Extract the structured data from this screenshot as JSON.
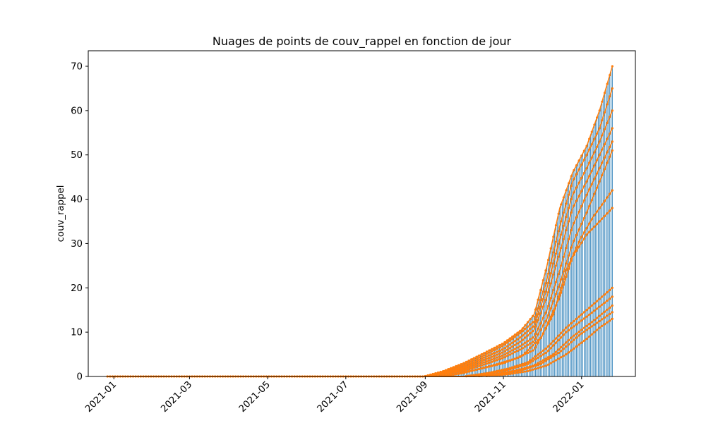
{
  "chart_data": {
    "type": "scatter",
    "title": "Nuages de points de couv_rappel en fonction de jour",
    "xlabel": "",
    "ylabel": "couv_rappel",
    "xlim": [
      "2020-12-12",
      "2022-02-12"
    ],
    "ylim": [
      0,
      73.5
    ],
    "x_ticks": [
      "2021-01",
      "2021-03",
      "2021-05",
      "2021-07",
      "2021-09",
      "2021-11",
      "2022-01"
    ],
    "y_ticks": [
      0,
      10,
      20,
      30,
      40,
      50,
      60,
      70
    ],
    "grid": false,
    "colors": {
      "bars": "#1f77b4",
      "points": "#ff7f0e"
    },
    "x_start": "2020-12-27",
    "x_end": "2022-01-25",
    "series": [
      {
        "points": [
          [
            "2021-08-31",
            0
          ],
          [
            "2021-09-15",
            1.2
          ],
          [
            "2021-10-01",
            3.0
          ],
          [
            "2021-10-15",
            5.0
          ],
          [
            "2021-11-01",
            7.5
          ],
          [
            "2021-11-15",
            10.5
          ],
          [
            "2021-11-25",
            14
          ],
          [
            "2021-12-05",
            25
          ],
          [
            "2021-12-15",
            38
          ],
          [
            "2021-12-25",
            46
          ],
          [
            "2022-01-05",
            52
          ],
          [
            "2022-01-15",
            60
          ],
          [
            "2022-01-25",
            70
          ]
        ]
      },
      {
        "points": [
          [
            "2021-08-31",
            0
          ],
          [
            "2021-09-15",
            1.0
          ],
          [
            "2021-10-01",
            2.6
          ],
          [
            "2021-10-15",
            4.5
          ],
          [
            "2021-11-01",
            7.0
          ],
          [
            "2021-11-15",
            10.0
          ],
          [
            "2021-11-25",
            12.5
          ],
          [
            "2021-12-05",
            22
          ],
          [
            "2021-12-15",
            34
          ],
          [
            "2021-12-25",
            44
          ],
          [
            "2022-01-05",
            50
          ],
          [
            "2022-01-15",
            56
          ],
          [
            "2022-01-25",
            65
          ]
        ]
      },
      {
        "points": [
          [
            "2021-08-31",
            0
          ],
          [
            "2021-09-15",
            0.8
          ],
          [
            "2021-10-01",
            2.2
          ],
          [
            "2021-10-15",
            4.0
          ],
          [
            "2021-11-01",
            6.2
          ],
          [
            "2021-11-15",
            9.0
          ],
          [
            "2021-11-25",
            11.5
          ],
          [
            "2021-12-05",
            20
          ],
          [
            "2021-12-15",
            31
          ],
          [
            "2021-12-25",
            41
          ],
          [
            "2022-01-05",
            47
          ],
          [
            "2022-01-15",
            53
          ],
          [
            "2022-01-25",
            60
          ]
        ]
      },
      {
        "points": [
          [
            "2021-08-31",
            0
          ],
          [
            "2021-09-15",
            0.7
          ],
          [
            "2021-10-01",
            1.9
          ],
          [
            "2021-10-15",
            3.5
          ],
          [
            "2021-11-01",
            5.5
          ],
          [
            "2021-11-15",
            8.0
          ],
          [
            "2021-11-25",
            10.5
          ],
          [
            "2021-12-05",
            18
          ],
          [
            "2021-12-15",
            28
          ],
          [
            "2021-12-25",
            38
          ],
          [
            "2022-01-05",
            44
          ],
          [
            "2022-01-15",
            50
          ],
          [
            "2022-01-25",
            56
          ]
        ]
      },
      {
        "points": [
          [
            "2021-08-31",
            0
          ],
          [
            "2021-09-15",
            0.6
          ],
          [
            "2021-10-01",
            1.6
          ],
          [
            "2021-10-15",
            3.0
          ],
          [
            "2021-11-01",
            4.8
          ],
          [
            "2021-11-15",
            7.0
          ],
          [
            "2021-11-25",
            9.0
          ],
          [
            "2021-12-05",
            15
          ],
          [
            "2021-12-15",
            24
          ],
          [
            "2021-12-25",
            34
          ],
          [
            "2022-01-05",
            41
          ],
          [
            "2022-01-15",
            47
          ],
          [
            "2022-01-25",
            53
          ]
        ]
      },
      {
        "points": [
          [
            "2021-08-31",
            0
          ],
          [
            "2021-09-15",
            0.5
          ],
          [
            "2021-10-01",
            1.3
          ],
          [
            "2021-10-15",
            2.5
          ],
          [
            "2021-11-01",
            4.2
          ],
          [
            "2021-11-15",
            6.2
          ],
          [
            "2021-11-25",
            8.0
          ],
          [
            "2021-12-05",
            13
          ],
          [
            "2021-12-15",
            21
          ],
          [
            "2021-12-25",
            30
          ],
          [
            "2022-01-05",
            37
          ],
          [
            "2022-01-15",
            44
          ],
          [
            "2022-01-25",
            51
          ]
        ]
      },
      {
        "points": [
          [
            "2021-09-10",
            0
          ],
          [
            "2021-09-25",
            0.6
          ],
          [
            "2021-10-10",
            1.5
          ],
          [
            "2021-10-25",
            2.6
          ],
          [
            "2021-11-10",
            4.0
          ],
          [
            "2021-11-25",
            6.0
          ],
          [
            "2021-12-10",
            14
          ],
          [
            "2021-12-20",
            24
          ],
          [
            "2021-12-31",
            31
          ],
          [
            "2022-01-10",
            36
          ],
          [
            "2022-01-25",
            42
          ]
        ]
      },
      {
        "points": [
          [
            "2021-09-15",
            0
          ],
          [
            "2021-10-01",
            0.8
          ],
          [
            "2021-10-15",
            1.8
          ],
          [
            "2021-11-01",
            3.0
          ],
          [
            "2021-11-15",
            4.5
          ],
          [
            "2021-12-01",
            9
          ],
          [
            "2021-12-15",
            18
          ],
          [
            "2021-12-25",
            27
          ],
          [
            "2022-01-05",
            32
          ],
          [
            "2022-01-25",
            38
          ]
        ]
      },
      {
        "points": [
          [
            "2021-10-01",
            0
          ],
          [
            "2021-10-20",
            0.8
          ],
          [
            "2021-11-05",
            1.8
          ],
          [
            "2021-11-20",
            3.2
          ],
          [
            "2021-12-05",
            6.5
          ],
          [
            "2021-12-20",
            11
          ],
          [
            "2022-01-05",
            15
          ],
          [
            "2022-01-25",
            20
          ]
        ]
      },
      {
        "points": [
          [
            "2021-10-01",
            0
          ],
          [
            "2021-10-20",
            0.6
          ],
          [
            "2021-11-05",
            1.5
          ],
          [
            "2021-11-20",
            2.8
          ],
          [
            "2021-12-05",
            5.5
          ],
          [
            "2021-12-20",
            10
          ],
          [
            "2022-01-05",
            13.5
          ],
          [
            "2022-01-25",
            18
          ]
        ]
      },
      {
        "points": [
          [
            "2021-10-05",
            0
          ],
          [
            "2021-10-25",
            0.5
          ],
          [
            "2021-11-10",
            1.3
          ],
          [
            "2021-11-25",
            2.5
          ],
          [
            "2021-12-10",
            5.0
          ],
          [
            "2021-12-25",
            9
          ],
          [
            "2022-01-10",
            12.5
          ],
          [
            "2022-01-25",
            16
          ]
        ]
      },
      {
        "points": [
          [
            "2021-10-10",
            0
          ],
          [
            "2021-11-01",
            0.6
          ],
          [
            "2021-11-15",
            1.4
          ],
          [
            "2021-11-30",
            2.8
          ],
          [
            "2021-12-15",
            5.5
          ],
          [
            "2021-12-31",
            9.5
          ],
          [
            "2022-01-15",
            12.5
          ],
          [
            "2022-01-25",
            14.5
          ]
        ]
      },
      {
        "points": [
          [
            "2021-10-15",
            0
          ],
          [
            "2021-11-05",
            0.5
          ],
          [
            "2021-11-20",
            1.2
          ],
          [
            "2021-12-05",
            2.5
          ],
          [
            "2021-12-20",
            5.0
          ],
          [
            "2022-01-05",
            8.5
          ],
          [
            "2022-01-15",
            11
          ],
          [
            "2022-01-25",
            13
          ]
        ]
      }
    ]
  }
}
